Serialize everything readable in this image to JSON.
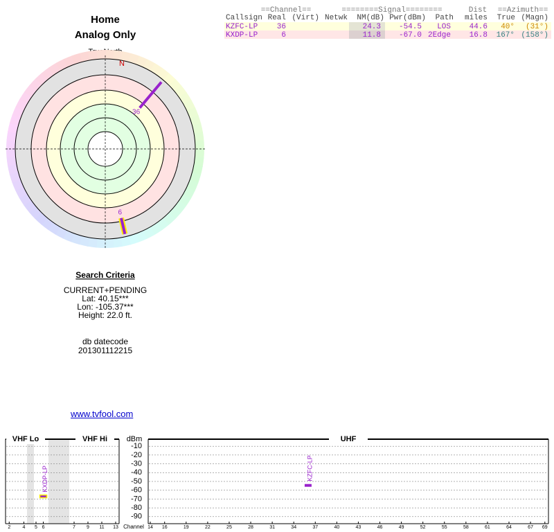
{
  "header": {
    "title": "Home",
    "subtitle": "Analog Only"
  },
  "radar": {
    "north_label": "TrueNorth",
    "n_label": "N"
  },
  "criteria": {
    "title": "Search Criteria",
    "lines": [
      "CURRENT+PENDING",
      "Lat: 40.15***",
      "Lon: -105.37***",
      "Height: 22.0 ft."
    ],
    "db_label": "db datecode",
    "db_code": "201301112215"
  },
  "link": "www.tvfool.com",
  "table": {
    "group_headers": [
      "==Channel==",
      "========Signal========",
      "Dist",
      "==Azimuth=="
    ],
    "columns": [
      "Callsign",
      "Real",
      "(Virt)",
      "Netwk",
      "NM(dB)",
      "Pwr(dBm)",
      "Path",
      "miles",
      "True",
      "(Magn)"
    ],
    "rows": [
      {
        "callsign": "KZFC-LP",
        "real": 36,
        "nm": 24.3,
        "pwr": -54.5,
        "path": "LOS",
        "dist": 44.6,
        "az_true": {
          "value": 40,
          "label": "40°"
        },
        "az_magn": "(31°)",
        "color": "#9922cc",
        "az_color": "#cc8800",
        "bg": "#ffffdd",
        "nm_bg": "#e4e4d4",
        "outline": "none"
      },
      {
        "callsign": "KXDP-LP",
        "real": 6,
        "nm": 11.8,
        "pwr": {
          "value": -67,
          "label": "-67.0"
        },
        "path": "2Edge",
        "dist": 16.8,
        "az_true": {
          "value": 167,
          "label": "167°"
        },
        "az_magn": "(158°)",
        "color": "#9922cc",
        "az_color": "#338080",
        "bg": "#ffe6e6",
        "nm_bg": "#dcd0d0",
        "outline": "#ffee00"
      }
    ]
  },
  "spectrum": {
    "bands": [
      "VHF Lo",
      "VHF Hi",
      "UHF"
    ],
    "y_label": "dBm",
    "x_label": "Channel",
    "ylim": [
      -2,
      -98
    ],
    "yticks": [
      -10,
      -20,
      -30,
      -40,
      -50,
      -60,
      -70,
      -80,
      -90
    ],
    "vhf_ticks": [
      2,
      4,
      5,
      6,
      7,
      9,
      11,
      13
    ],
    "uhf_ticks": [
      14,
      16,
      19,
      22,
      25,
      28,
      31,
      34,
      37,
      40,
      43,
      46,
      49,
      52,
      55,
      58,
      61,
      64,
      67,
      69
    ]
  }
}
